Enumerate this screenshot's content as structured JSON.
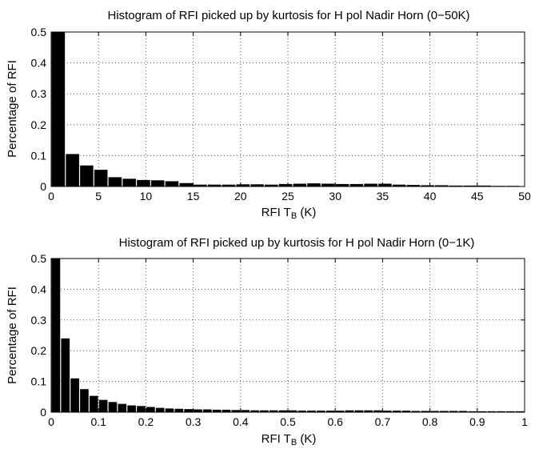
{
  "chart_data": [
    {
      "type": "bar",
      "title": "Histogram of RFI picked up by kurtosis for H pol Nadir Horn (0−50K)",
      "xlabel": {
        "main": "RFI T",
        "sub": "B",
        "unit": " (K)"
      },
      "ylabel": "Percentage of RFI",
      "xlim": [
        0,
        50
      ],
      "ylim": [
        0,
        0.5
      ],
      "xticks": [
        0,
        5,
        10,
        15,
        20,
        25,
        30,
        35,
        40,
        45,
        50
      ],
      "xtick_labels": [
        "0",
        "5",
        "10",
        "15",
        "20",
        "25",
        "30",
        "35",
        "40",
        "45",
        "50"
      ],
      "yticks": [
        0,
        0.1,
        0.2,
        0.3,
        0.4,
        0.5
      ],
      "ytick_labels": [
        "0",
        "0.1",
        "0.2",
        "0.3",
        "0.4",
        "0.5"
      ],
      "grid": true,
      "bar_width": 1.5,
      "bar_color": "#000000",
      "x": [
        0.75,
        2.25,
        3.75,
        5.25,
        6.75,
        8.25,
        9.75,
        11.25,
        12.75,
        14.25,
        15.75,
        17.25,
        18.75,
        20.25,
        21.75,
        23.25,
        24.75,
        26.25,
        27.75,
        29.25,
        30.75,
        32.25,
        33.75,
        35.25,
        36.75,
        38.25,
        39.75,
        41.25,
        42.75,
        44.25,
        45.75,
        47.25,
        48.75
      ],
      "values": [
        0.5,
        0.105,
        0.068,
        0.054,
        0.03,
        0.025,
        0.021,
        0.02,
        0.017,
        0.011,
        0.006,
        0.006,
        0.006,
        0.007,
        0.007,
        0.006,
        0.008,
        0.009,
        0.01,
        0.009,
        0.008,
        0.008,
        0.009,
        0.009,
        0.006,
        0.005,
        0.004,
        0.004,
        0.003,
        0.003,
        0.003,
        0.002,
        0.002
      ]
    },
    {
      "type": "bar",
      "title": "Histogram of RFI picked up by kurtosis for H pol Nadir Horn (0−1K)",
      "xlabel": {
        "main": "RFI T",
        "sub": "B",
        "unit": " (K)"
      },
      "ylabel": "Percentage of RFI",
      "xlim": [
        0,
        1
      ],
      "ylim": [
        0,
        0.5
      ],
      "xticks": [
        0,
        0.1,
        0.2,
        0.3,
        0.4,
        0.5,
        0.6,
        0.7,
        0.8,
        0.9,
        1
      ],
      "xtick_labels": [
        "0",
        "0.1",
        "0.2",
        "0.3",
        "0.4",
        "0.5",
        "0.6",
        "0.7",
        "0.8",
        "0.9",
        "1"
      ],
      "yticks": [
        0,
        0.1,
        0.2,
        0.3,
        0.4,
        0.5
      ],
      "ytick_labels": [
        "0",
        "0.1",
        "0.2",
        "0.3",
        "0.4",
        "0.5"
      ],
      "grid": true,
      "bar_width": 0.02,
      "bar_color": "#000000",
      "x": [
        0.01,
        0.03,
        0.05,
        0.07,
        0.09,
        0.11,
        0.13,
        0.15,
        0.17,
        0.19,
        0.21,
        0.23,
        0.25,
        0.27,
        0.29,
        0.31,
        0.33,
        0.35,
        0.37,
        0.39,
        0.41,
        0.43,
        0.45,
        0.47,
        0.49,
        0.51,
        0.53,
        0.55,
        0.57,
        0.59,
        0.61,
        0.63,
        0.65,
        0.67,
        0.69,
        0.71,
        0.73,
        0.75,
        0.77,
        0.79,
        0.81,
        0.83,
        0.85,
        0.87,
        0.89,
        0.91,
        0.93,
        0.95,
        0.97,
        0.99
      ],
      "values": [
        0.5,
        0.24,
        0.11,
        0.075,
        0.053,
        0.04,
        0.033,
        0.027,
        0.022,
        0.02,
        0.017,
        0.014,
        0.012,
        0.011,
        0.01,
        0.009,
        0.009,
        0.008,
        0.008,
        0.007,
        0.007,
        0.006,
        0.006,
        0.006,
        0.006,
        0.006,
        0.005,
        0.005,
        0.005,
        0.005,
        0.005,
        0.006,
        0.006,
        0.006,
        0.006,
        0.005,
        0.005,
        0.005,
        0.004,
        0.004,
        0.004,
        0.004,
        0.004,
        0.004,
        0.003,
        0.003,
        0.003,
        0.003,
        0.003,
        0.003
      ]
    }
  ]
}
